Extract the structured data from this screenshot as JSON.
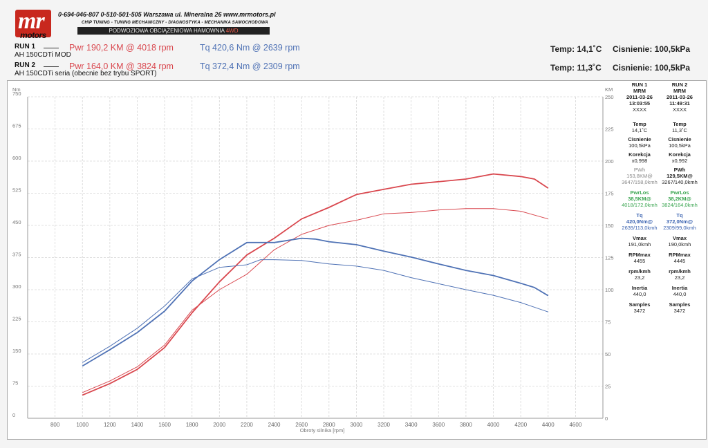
{
  "header": {
    "logo_main": "mr",
    "logo_sub": "motors",
    "contact": "0-694-046-807   0-510-501-505   Warszawa ul. Mineralna 26   www.mrmotors.pl",
    "services": "CHIP TUNING - TUNING MECHANICZNY - DIAGNOSTYKA - MECHANIKA SAMOCHODOWA",
    "banner_a": "PODWOZIOWA OBCIĄŻENIOWA HAMOWNIA ",
    "banner_b": "4WD"
  },
  "runs": [
    {
      "label": "RUN 1",
      "desc": "AH 150CDTi MOD",
      "pwr": "Pwr  190,2 KM @ 4018 rpm",
      "tq": "Tq  420,6 Nm @ 2639 rpm",
      "temp": "Temp: 14,1˚C",
      "press": "Cisnienie: 100,5kPa"
    },
    {
      "label": "RUN 2",
      "desc": "AH 150CDTi seria (obecnie bez trybu SPORT)",
      "pwr": "Pwr  164,0 KM @ 3824 rpm",
      "tq": "Tq  372,4 Nm @ 2309 rpm",
      "temp": "Temp: 11,3˚C",
      "press": "Cisnienie: 100,5kPa"
    }
  ],
  "side_panel": [
    {
      "run": "RUN 1",
      "name": "MRM",
      "date": "2011-03-26",
      "time": "13:03:55",
      "code": "XXXX",
      "temp_label": "Temp",
      "temp": "14,1˚C",
      "press_label": "Cisnienie",
      "press": "100,5kPa",
      "corr_label": "Korekcja",
      "corr": "x0,998",
      "pwh_label": "PWh",
      "pwh": "153,8KM@",
      "pwh_at": "3647/158,0kmh",
      "pwrlos_label": "PwrLos",
      "pwrlos": "38,5KM@",
      "pwrlos_at": "4018/172,0kmh",
      "tq_label": "Tq",
      "tq": "420,0Nm@",
      "tq_at": "2639/113,0kmh",
      "vmax_label": "Vmax",
      "vmax": "191,0kmh",
      "rpmmax_label": "RPMmax",
      "rpmmax": "4455",
      "rpmkmh_label": "rpm/kmh",
      "rpmkmh": "23,2",
      "inertia_label": "Inertia",
      "inertia": "440,0",
      "samples_label": "Samples",
      "samples": "3472"
    },
    {
      "run": "RUN 2",
      "name": "MRM",
      "date": "2011-03-26",
      "time": "11:49:31",
      "code": "XXXX",
      "temp_label": "Temp",
      "temp": "11,3˚C",
      "press_label": "Cisnienie",
      "press": "100,5kPa",
      "corr_label": "Korekcja",
      "corr": "x0,992",
      "pwh_label": "PWh",
      "pwh": "129,5KM@",
      "pwh_at": "3267/140,0kmh",
      "pwrlos_label": "PwrLos",
      "pwrlos": "38,2KM@",
      "pwrlos_at": "3824/164,0kmh",
      "tq_label": "Tq",
      "tq": "372,0Nm@",
      "tq_at": "2309/99,0kmh",
      "vmax_label": "Vmax",
      "vmax": "190,0kmh",
      "rpmmax_label": "RPMmax",
      "rpmmax": "4445",
      "rpmkmh_label": "rpm/kmh",
      "rpmkmh": "23,2",
      "inertia_label": "Inertia",
      "inertia": "440,0",
      "samples_label": "Samples",
      "samples": "3472"
    }
  ],
  "chart_data": {
    "type": "line",
    "xlabel": "Obroty silnika [rpm]",
    "ylabel_left": "Nm",
    "ylabel_right": "KM",
    "xlim": [
      600,
      4800
    ],
    "xticks": [
      800,
      1000,
      1200,
      1400,
      1600,
      1800,
      2000,
      2200,
      2400,
      2600,
      2800,
      3000,
      3200,
      3400,
      3600,
      3800,
      4000,
      4200,
      4400,
      4600
    ],
    "ylim_left": [
      0,
      750
    ],
    "yticks_left": [
      0,
      75,
      150,
      225,
      300,
      375,
      450,
      525,
      600,
      675,
      750
    ],
    "ylim_right": [
      0,
      250
    ],
    "yticks_right": [
      0,
      25,
      50,
      75,
      100,
      125,
      150,
      175,
      200,
      225,
      250
    ],
    "grid": true,
    "series": [
      {
        "axis": "right",
        "color": "#d9474e",
        "width": 1.8,
        "x": [
          1000,
          1200,
          1400,
          1600,
          1800,
          2000,
          2200,
          2400,
          2600,
          2800,
          3000,
          3200,
          3400,
          3600,
          3800,
          4000,
          4200,
          4300,
          4400
        ],
        "values": [
          18,
          27,
          38,
          55,
          82,
          106,
          127,
          140,
          155,
          164,
          174,
          178,
          182,
          184,
          186,
          190,
          188,
          186,
          179
        ]
      },
      {
        "axis": "right",
        "color": "#d9474e",
        "width": 1.0,
        "x": [
          1000,
          1200,
          1400,
          1600,
          1800,
          2000,
          2200,
          2400,
          2600,
          2800,
          3000,
          3200,
          3400,
          3600,
          3800,
          4000,
          4200,
          4400
        ],
        "values": [
          20,
          29,
          40,
          57,
          84,
          100,
          112,
          131,
          143,
          150,
          154,
          159,
          160,
          162,
          163,
          163,
          161,
          155
        ]
      },
      {
        "axis": "left",
        "color": "#4f72b5",
        "width": 1.8,
        "x": [
          1000,
          1200,
          1400,
          1600,
          1800,
          2000,
          2200,
          2400,
          2600,
          2700,
          2800,
          3000,
          3200,
          3400,
          3600,
          3800,
          4000,
          4200,
          4300,
          4400
        ],
        "values": [
          122,
          160,
          200,
          250,
          320,
          370,
          410,
          410,
          420,
          418,
          412,
          405,
          390,
          376,
          360,
          345,
          333,
          315,
          305,
          286
        ]
      },
      {
        "axis": "left",
        "color": "#4f72b5",
        "width": 1.0,
        "x": [
          1000,
          1200,
          1400,
          1600,
          1800,
          2000,
          2200,
          2300,
          2400,
          2600,
          2800,
          3000,
          3200,
          3400,
          3600,
          3800,
          4000,
          4200,
          4400
        ],
        "values": [
          130,
          168,
          210,
          262,
          325,
          352,
          358,
          370,
          370,
          368,
          360,
          355,
          345,
          328,
          314,
          300,
          287,
          270,
          248
        ]
      }
    ]
  }
}
